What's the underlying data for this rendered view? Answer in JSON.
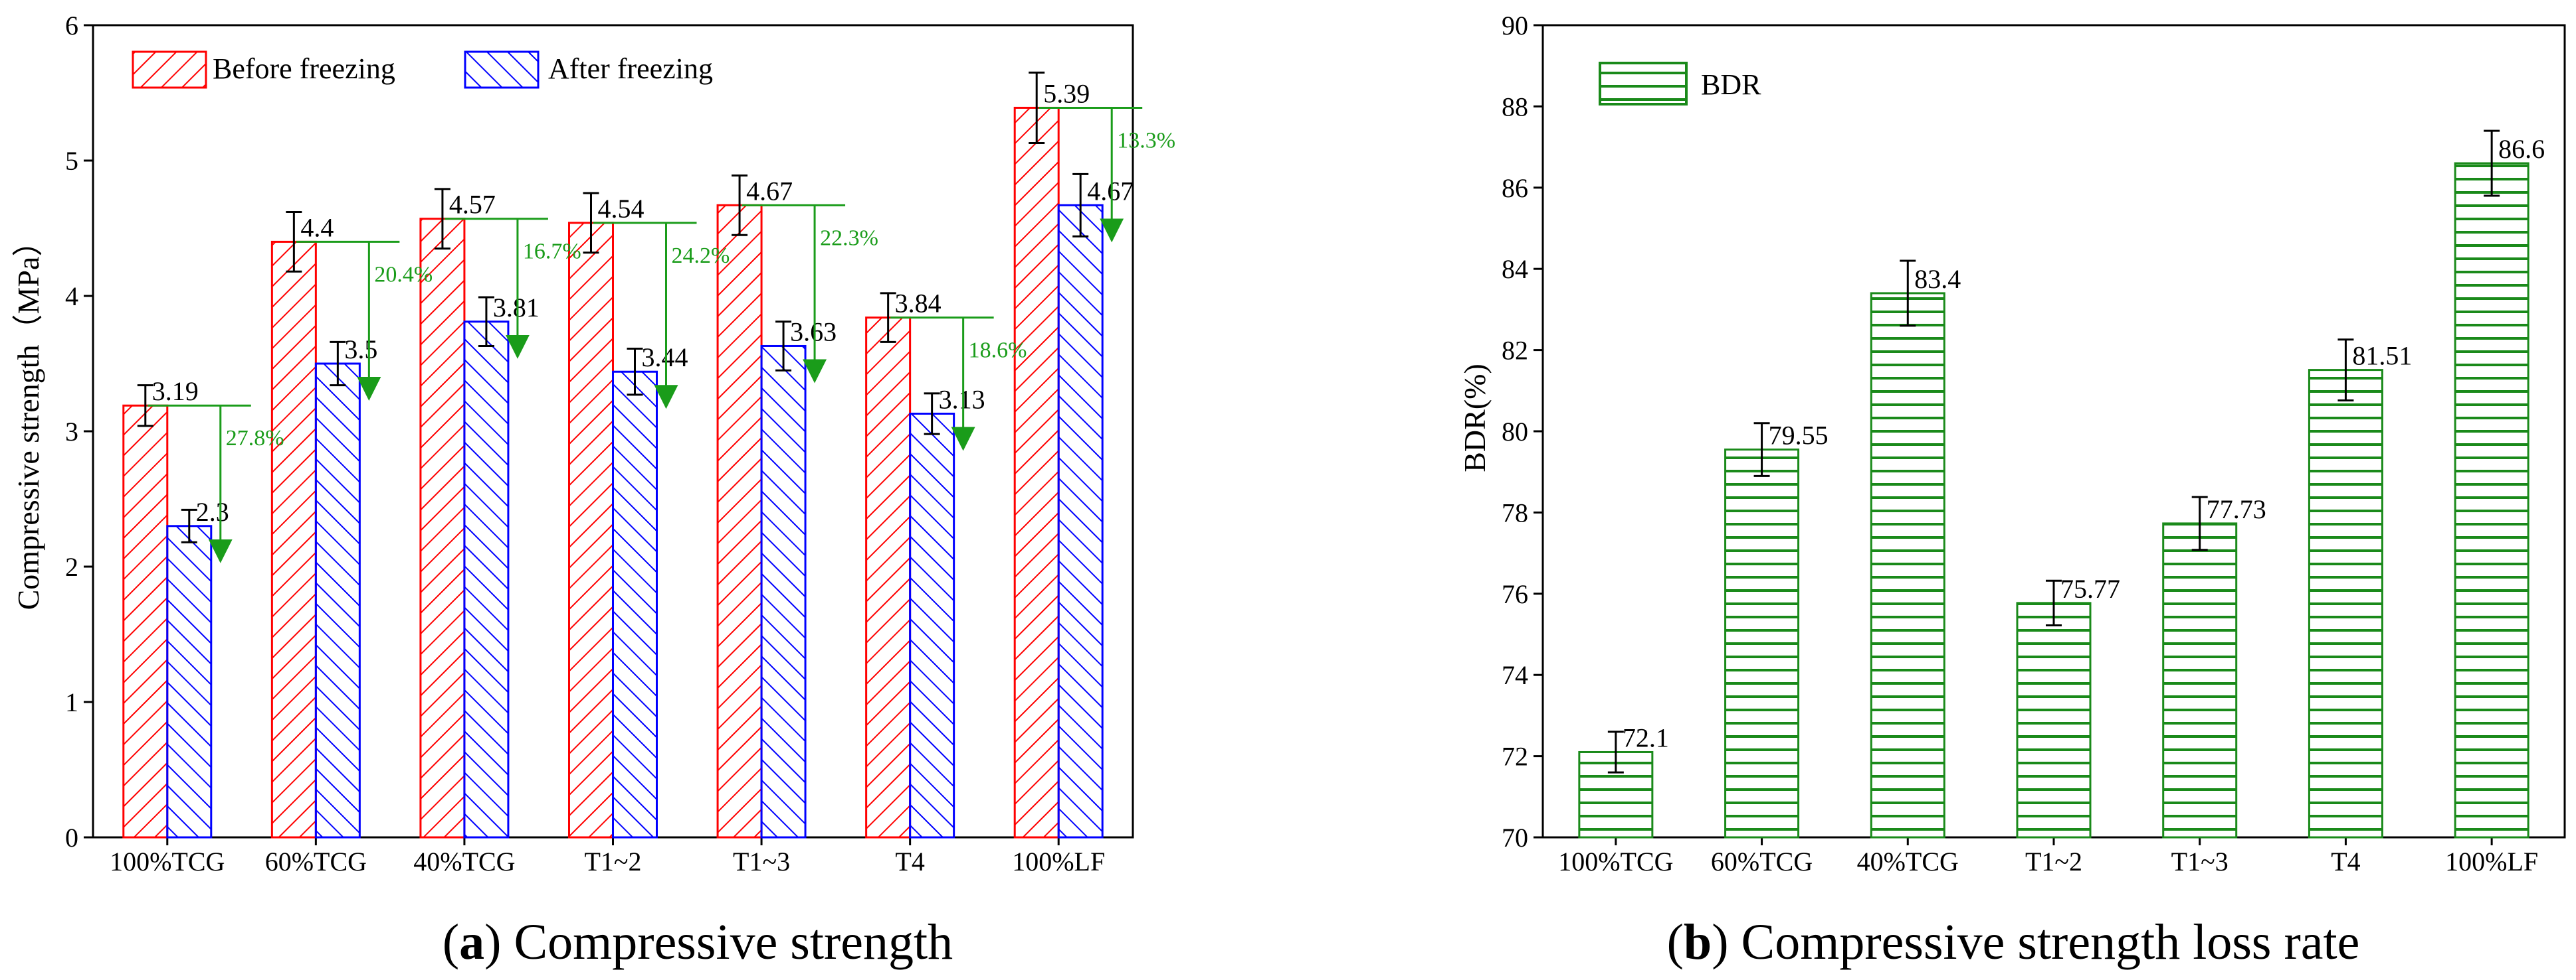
{
  "chart_data": [
    {
      "type": "bar",
      "title": "",
      "xlabel": "",
      "ylabel": "Compressive strength（MPa）",
      "ylim": [
        0,
        6
      ],
      "yticks": [
        "0",
        "1",
        "2",
        "3",
        "4",
        "5",
        "6"
      ],
      "categories": [
        "100%TCG",
        "60%TCG",
        "40%TCG",
        "T1~2",
        "T1~3",
        "T4",
        "100%LF"
      ],
      "series": [
        {
          "name": "Before freezing",
          "color": "#ff0000",
          "values": [
            3.19,
            4.4,
            4.57,
            4.54,
            4.67,
            3.84,
            5.39
          ],
          "labels": [
            "3.19",
            "4.4",
            "4.57",
            "4.54",
            "4.67",
            "3.84",
            "5.39"
          ],
          "errors": [
            0.15,
            0.22,
            0.22,
            0.22,
            0.22,
            0.18,
            0.26
          ]
        },
        {
          "name": "After freezing",
          "color": "#0000ff",
          "values": [
            2.3,
            3.5,
            3.81,
            3.44,
            3.63,
            3.13,
            4.67
          ],
          "labels": [
            "2.3",
            "3.5",
            "3.81",
            "3.44",
            "3.63",
            "3.13",
            "4.67"
          ],
          "errors": [
            0.12,
            0.16,
            0.18,
            0.17,
            0.18,
            0.15,
            0.23
          ]
        }
      ],
      "annotations": [
        "27.8%",
        "20.4%",
        "16.7%",
        "24.2%",
        "22.3%",
        "18.6%",
        "13.3%"
      ],
      "annotation_color": "#1a9c1a",
      "legend": "top-left",
      "caption": {
        "letter": "a",
        "text": "Compressive strength"
      }
    },
    {
      "type": "bar",
      "title": "",
      "xlabel": "",
      "ylabel": "BDR(%)",
      "ylim": [
        70,
        90
      ],
      "yticks": [
        "70",
        "72",
        "74",
        "76",
        "78",
        "80",
        "82",
        "84",
        "86",
        "88",
        "90"
      ],
      "categories": [
        "100%TCG",
        "60%TCG",
        "40%TCG",
        "T1~2",
        "T1~3",
        "T4",
        "100%LF"
      ],
      "series": [
        {
          "name": "BDR",
          "color": "#1a8a1a",
          "values": [
            72.1,
            79.55,
            83.4,
            75.77,
            77.73,
            81.51,
            86.6
          ],
          "labels": [
            "72.1",
            "79.55",
            "83.4",
            "75.77",
            "77.73",
            "81.51",
            "86.6"
          ],
          "errors": [
            0.5,
            0.65,
            0.8,
            0.55,
            0.65,
            0.75,
            0.8
          ]
        }
      ],
      "legend": "top-left",
      "caption": {
        "letter": "b",
        "text": "Compressive strength loss rate"
      }
    }
  ]
}
